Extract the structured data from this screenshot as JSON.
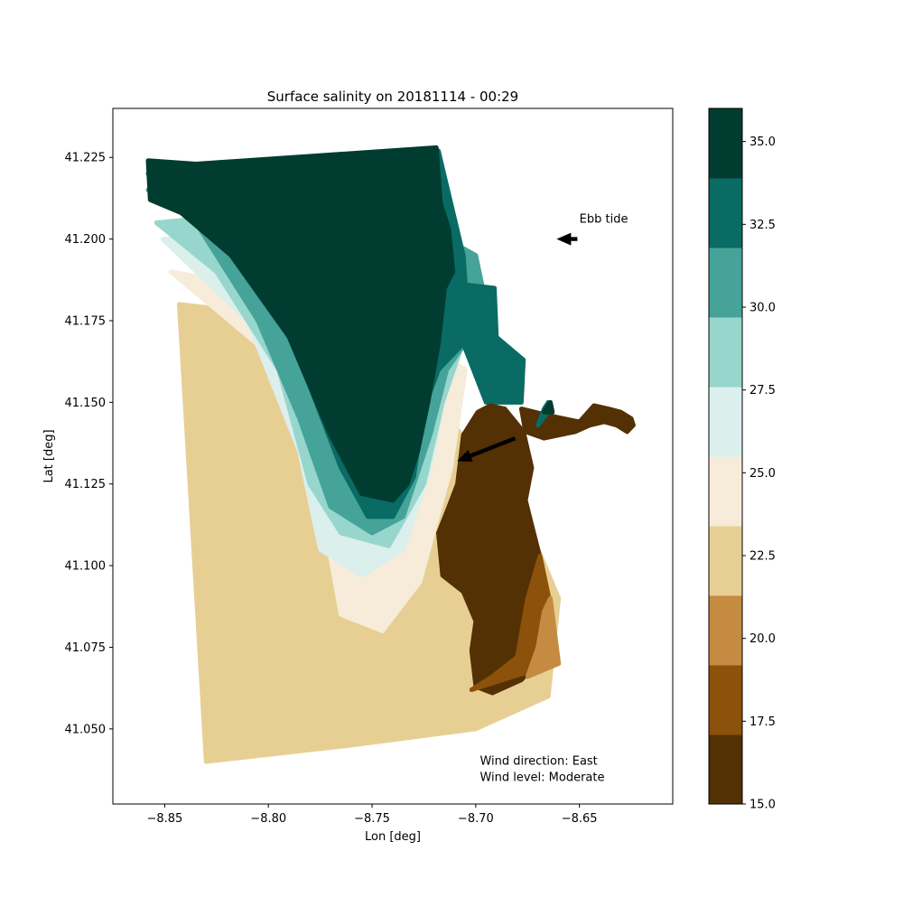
{
  "chart_data": {
    "type": "heatmap",
    "title": "Surface salinity on 20181114 - 00:29",
    "xlabel": "Lon [deg]",
    "ylabel": "Lat [deg]",
    "xlim": [
      -8.875,
      -8.605
    ],
    "ylim": [
      41.027,
      41.24
    ],
    "xticks": [
      -8.85,
      -8.8,
      -8.75,
      -8.7,
      -8.65
    ],
    "xtick_labels": [
      "−8.85",
      "−8.80",
      "−8.75",
      "−8.70",
      "−8.65"
    ],
    "yticks": [
      41.05,
      41.075,
      41.1,
      41.125,
      41.15,
      41.175,
      41.2,
      41.225
    ],
    "ytick_labels": [
      "41.050",
      "41.075",
      "41.100",
      "41.125",
      "41.150",
      "41.175",
      "41.200",
      "41.225"
    ],
    "grid": false,
    "colorbar": {
      "range": [
        15.0,
        36.0
      ],
      "ticks": [
        15.0,
        17.5,
        20.0,
        22.5,
        25.0,
        27.5,
        30.0,
        32.5,
        35.0
      ],
      "tick_labels": [
        "15.0",
        "17.5",
        "20.0",
        "22.5",
        "25.0",
        "27.5",
        "30.0",
        "32.5",
        "35.0"
      ],
      "levels": [
        {
          "min": 15.0,
          "max": 17.1,
          "color": "#543005"
        },
        {
          "min": 17.1,
          "max": 19.2,
          "color": "#8c510a"
        },
        {
          "min": 19.2,
          "max": 21.3,
          "color": "#c48b41"
        },
        {
          "min": 21.3,
          "max": 23.4,
          "color": "#e7cf94"
        },
        {
          "min": 23.4,
          "max": 25.5,
          "color": "#f6ecd9"
        },
        {
          "min": 25.5,
          "max": 27.6,
          "color": "#dbefed"
        },
        {
          "min": 27.6,
          "max": 29.7,
          "color": "#97d6cc"
        },
        {
          "min": 29.7,
          "max": 31.8,
          "color": "#45a399"
        },
        {
          "min": 31.8,
          "max": 33.9,
          "color": "#096b63"
        },
        {
          "min": 33.9,
          "max": 36.0,
          "color": "#003c30"
        }
      ]
    },
    "annotations": [
      {
        "text": "Ebb tide",
        "lon": -8.65,
        "lat": 41.205
      },
      {
        "text": "Wind direction: East",
        "lon": -8.698,
        "lat": 41.039
      },
      {
        "text": "Wind level: Moderate",
        "lon": -8.698,
        "lat": 41.034
      }
    ],
    "arrows": [
      {
        "name": "ebb-tide-arrow",
        "from": [
          -8.651,
          41.2
        ],
        "to": [
          -8.661,
          41.2
        ]
      },
      {
        "name": "wind-arrow",
        "from": [
          -8.681,
          41.139
        ],
        "to": [
          -8.709,
          41.132
        ]
      }
    ],
    "salinity_regions": [
      {
        "salinity": 22.0,
        "points": [
          [
            -8.843,
            41.18
          ],
          [
            -8.775,
            41.175
          ],
          [
            -8.72,
            41.15
          ],
          [
            -8.68,
            41.12
          ],
          [
            -8.66,
            41.09
          ],
          [
            -8.665,
            41.06
          ],
          [
            -8.7,
            41.05
          ],
          [
            -8.76,
            41.045
          ],
          [
            -8.83,
            41.04
          ]
        ]
      },
      {
        "salinity": 24.5,
        "points": [
          [
            -8.847,
            41.19
          ],
          [
            -8.8,
            41.165
          ],
          [
            -8.775,
            41.12
          ],
          [
            -8.765,
            41.085
          ],
          [
            -8.745,
            41.08
          ],
          [
            -8.727,
            41.095
          ],
          [
            -8.712,
            41.13
          ],
          [
            -8.705,
            41.16
          ],
          [
            -8.76,
            41.18
          ]
        ]
      },
      {
        "salinity": 26.5,
        "points": [
          [
            -8.851,
            41.2
          ],
          [
            -8.81,
            41.175
          ],
          [
            -8.785,
            41.135
          ],
          [
            -8.775,
            41.105
          ],
          [
            -8.755,
            41.097
          ],
          [
            -8.735,
            41.105
          ],
          [
            -8.722,
            41.13
          ],
          [
            -8.713,
            41.16
          ],
          [
            -8.7,
            41.18
          ],
          [
            -8.77,
            41.2
          ]
        ]
      },
      {
        "salinity": 28.6,
        "points": [
          [
            -8.854,
            41.205
          ],
          [
            -8.825,
            41.19
          ],
          [
            -8.795,
            41.16
          ],
          [
            -8.78,
            41.125
          ],
          [
            -8.765,
            41.11
          ],
          [
            -8.742,
            41.106
          ],
          [
            -8.725,
            41.125
          ],
          [
            -8.716,
            41.15
          ],
          [
            -8.7,
            41.18
          ],
          [
            -8.77,
            41.21
          ]
        ]
      },
      {
        "salinity": 30.7,
        "points": [
          [
            -8.858,
            41.215
          ],
          [
            -8.835,
            41.205
          ],
          [
            -8.805,
            41.175
          ],
          [
            -8.785,
            41.145
          ],
          [
            -8.77,
            41.118
          ],
          [
            -8.75,
            41.11
          ],
          [
            -8.735,
            41.115
          ],
          [
            -8.722,
            41.14
          ],
          [
            -8.714,
            41.16
          ],
          [
            -8.703,
            41.17
          ],
          [
            -8.69,
            41.165
          ],
          [
            -8.7,
            41.195
          ],
          [
            -8.77,
            41.22
          ]
        ]
      },
      {
        "salinity": 32.8,
        "points": [
          [
            -8.858,
            41.22
          ],
          [
            -8.83,
            41.21
          ],
          [
            -8.8,
            41.185
          ],
          [
            -8.78,
            41.155
          ],
          [
            -8.765,
            41.13
          ],
          [
            -8.752,
            41.115
          ],
          [
            -8.74,
            41.115
          ],
          [
            -8.73,
            41.127
          ],
          [
            -8.725,
            41.148
          ],
          [
            -8.718,
            41.16
          ],
          [
            -8.706,
            41.168
          ],
          [
            -8.695,
            41.15
          ],
          [
            -8.678,
            41.15
          ],
          [
            -8.677,
            41.163
          ],
          [
            -8.69,
            41.17
          ],
          [
            -8.691,
            41.185
          ],
          [
            -8.705,
            41.186
          ],
          [
            -8.706,
            41.195
          ],
          [
            -8.718,
            41.227
          ],
          [
            -8.78,
            41.225
          ]
        ]
      },
      {
        "salinity": 35.0,
        "points": [
          [
            -8.858,
            41.224
          ],
          [
            -8.835,
            41.223
          ],
          [
            -8.719,
            41.228
          ],
          [
            -8.717,
            41.211
          ],
          [
            -8.713,
            41.203
          ],
          [
            -8.711,
            41.19
          ],
          [
            -8.715,
            41.185
          ],
          [
            -8.718,
            41.168
          ],
          [
            -8.723,
            41.15
          ],
          [
            -8.728,
            41.135
          ],
          [
            -8.733,
            41.125
          ],
          [
            -8.74,
            41.12
          ],
          [
            -8.755,
            41.122
          ],
          [
            -8.77,
            41.14
          ],
          [
            -8.79,
            41.17
          ],
          [
            -8.818,
            41.195
          ],
          [
            -8.842,
            41.208
          ],
          [
            -8.857,
            41.212
          ]
        ]
      },
      {
        "salinity": 16.0,
        "points": [
          [
            -8.7088,
            41.125
          ],
          [
            -8.713,
            41.118
          ],
          [
            -8.718,
            41.11
          ],
          [
            -8.716,
            41.097
          ],
          [
            -8.706,
            41.092
          ],
          [
            -8.7,
            41.083
          ],
          [
            -8.702,
            41.074
          ],
          [
            -8.7,
            41.063
          ],
          [
            -8.692,
            41.061
          ],
          [
            -8.678,
            41.065
          ],
          [
            -8.671,
            41.07
          ],
          [
            -8.675,
            41.08
          ],
          [
            -8.67,
            41.095
          ],
          [
            -8.668,
            41.1
          ],
          [
            -8.672,
            41.11
          ],
          [
            -8.676,
            41.12
          ],
          [
            -8.673,
            41.13
          ],
          [
            -8.677,
            41.141
          ],
          [
            -8.686,
            41.148
          ],
          [
            -8.693,
            41.149
          ],
          [
            -8.699,
            41.147
          ],
          [
            -8.706,
            41.14
          ]
        ]
      },
      {
        "salinity": 16.0,
        "points": [
          [
            -8.678,
            41.148
          ],
          [
            -8.665,
            41.146
          ],
          [
            -8.65,
            41.144
          ],
          [
            -8.643,
            41.149
          ],
          [
            -8.636,
            41.148
          ],
          [
            -8.63,
            41.147
          ],
          [
            -8.625,
            41.145
          ],
          [
            -8.624,
            41.143
          ],
          [
            -8.627,
            41.141
          ],
          [
            -8.632,
            41.143
          ],
          [
            -8.638,
            41.144
          ],
          [
            -8.645,
            41.143
          ],
          [
            -8.652,
            41.141
          ],
          [
            -8.667,
            41.139
          ],
          [
            -8.676,
            41.141
          ]
        ]
      },
      {
        "salinity": 18.0,
        "points": [
          [
            -8.702,
            41.062
          ],
          [
            -8.687,
            41.065
          ],
          [
            -8.672,
            41.068
          ],
          [
            -8.666,
            41.076
          ],
          [
            -8.664,
            41.088
          ],
          [
            -8.669,
            41.103
          ],
          [
            -8.675,
            41.09
          ],
          [
            -8.68,
            41.072
          ],
          [
            -8.692,
            41.066
          ]
        ]
      },
      {
        "salinity": 20.0,
        "points": [
          [
            -8.664,
            41.09
          ],
          [
            -8.66,
            41.07
          ],
          [
            -8.675,
            41.066
          ],
          [
            -8.67,
            41.075
          ],
          [
            -8.667,
            41.086
          ]
        ]
      },
      {
        "salinity": 33.0,
        "points": [
          [
            -8.67,
            41.143
          ],
          [
            -8.667,
            41.148
          ],
          [
            -8.665,
            41.15
          ],
          [
            -8.664,
            41.148
          ]
        ]
      },
      {
        "salinity": 35.0,
        "points": [
          [
            -8.667,
            41.147
          ],
          [
            -8.664,
            41.15
          ],
          [
            -8.663,
            41.147
          ]
        ]
      }
    ]
  }
}
